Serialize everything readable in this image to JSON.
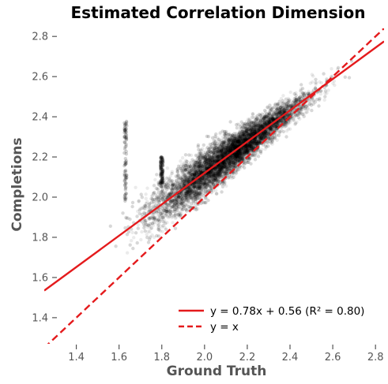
{
  "chart_data": {
    "type": "scatter",
    "title": "Estimated Correlation Dimension",
    "xlabel": "Ground Truth",
    "ylabel": "Completions",
    "xlim": [
      1.25,
      2.84
    ],
    "ylim": [
      1.27,
      2.84
    ],
    "xticks": [
      1.4,
      1.6,
      1.8,
      2.0,
      2.2,
      2.4,
      2.6,
      2.8
    ],
    "yticks": [
      1.4,
      1.6,
      1.8,
      2.0,
      2.2,
      2.4,
      2.6,
      2.8
    ],
    "grid": false,
    "legend_position": "lower-right",
    "scatter": {
      "color": "#000000",
      "opacity": 0.08,
      "approx_points": 9000,
      "distribution": "dense cloud along the diagonal, widest spread at low values, tightening near 2.4–2.5; vertical streaks near x = 1.63 and x = 1.8"
    },
    "series": [
      {
        "name": "y = 0.78x + 0.56 (R² = 0.80)",
        "type": "line",
        "slope": 0.78,
        "intercept": 0.56,
        "color": "#e41a1c",
        "style": "solid"
      },
      {
        "name": "y = x",
        "type": "line",
        "slope": 1,
        "intercept": 0,
        "color": "#e41a1c",
        "style": "dashed"
      }
    ]
  }
}
